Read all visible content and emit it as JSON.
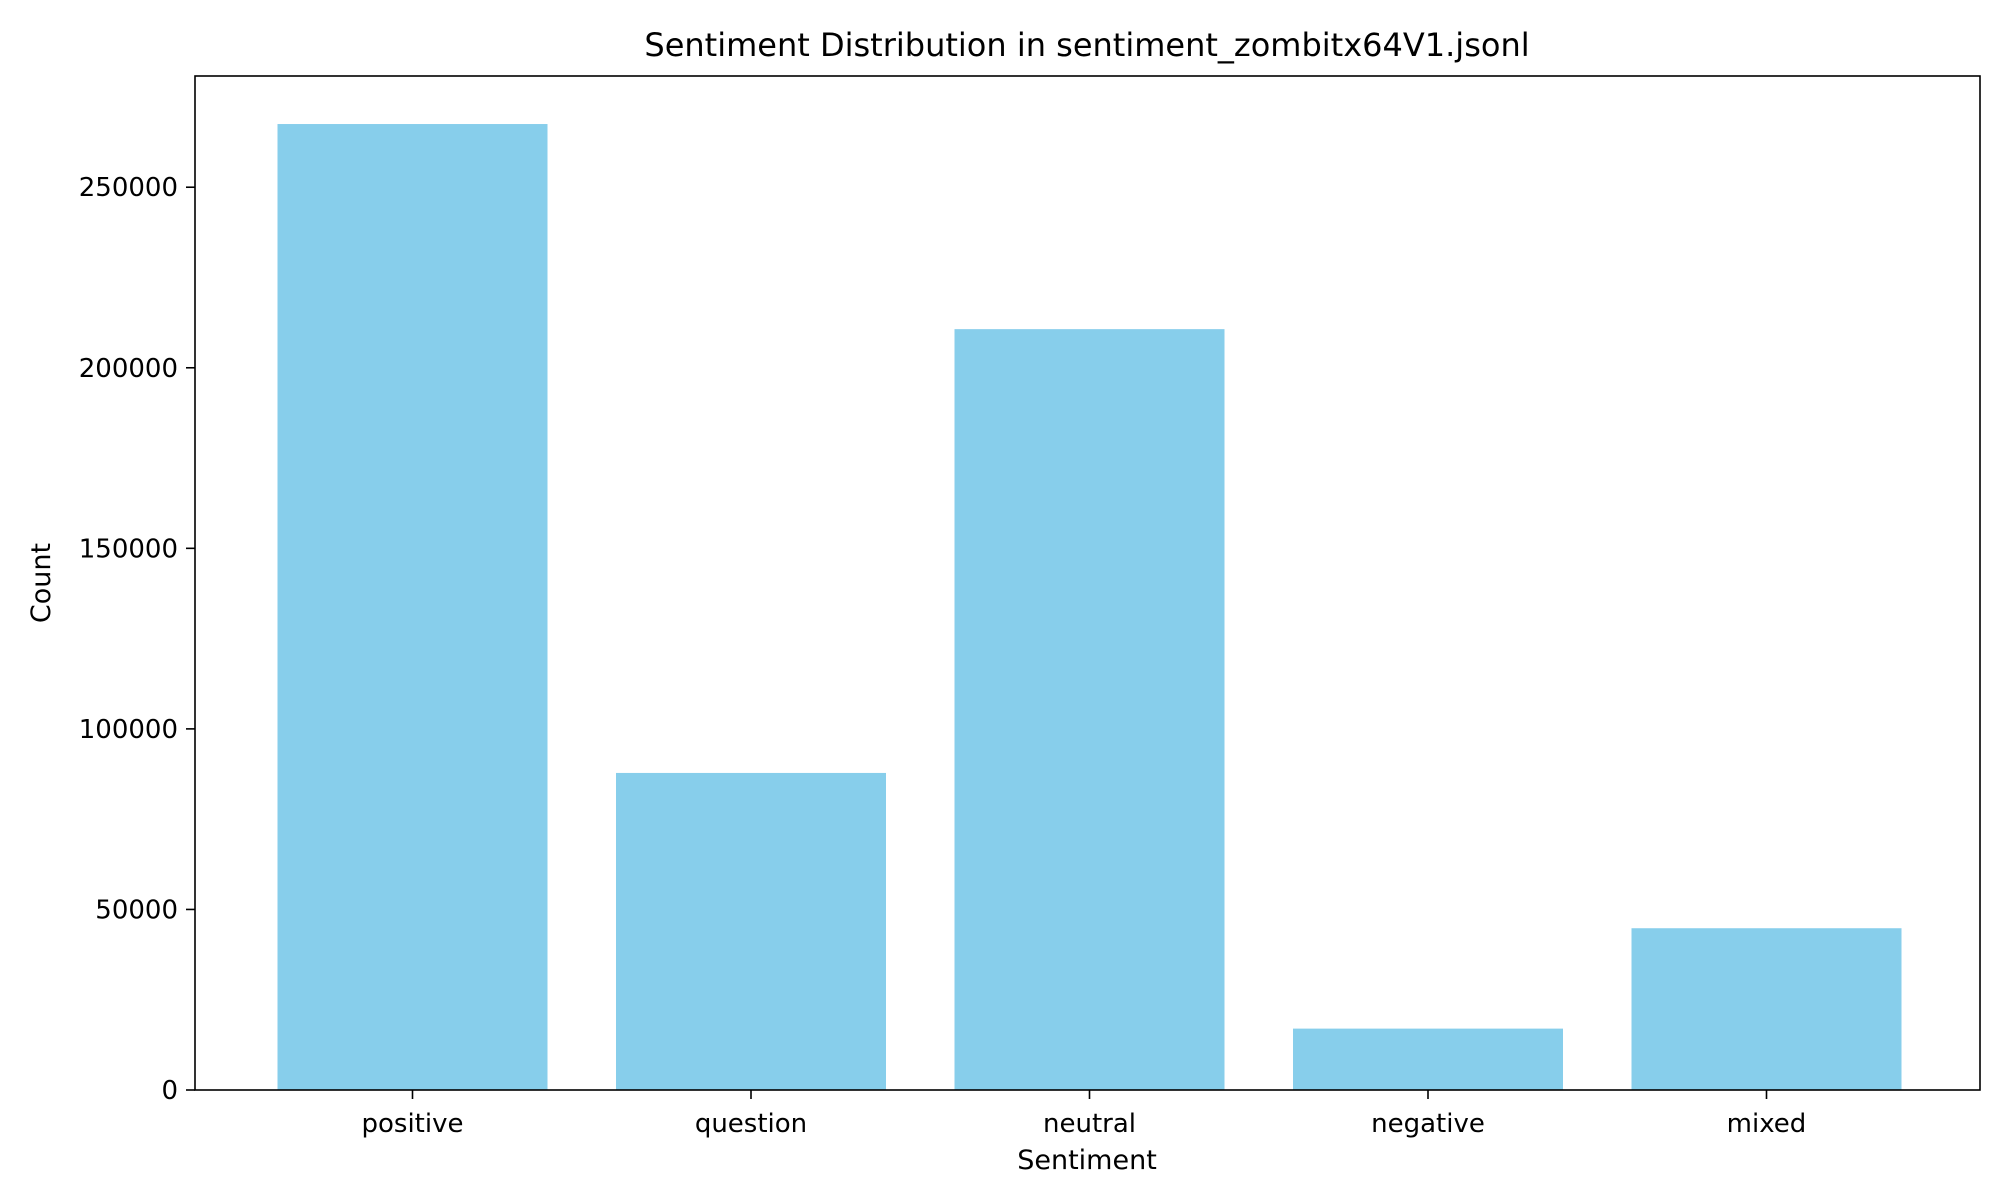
{
  "chart_data": {
    "type": "bar",
    "title": "Sentiment Distribution in sentiment_zombitx64V1.jsonl",
    "xlabel": "Sentiment",
    "ylabel": "Count",
    "categories": [
      "positive",
      "question",
      "neutral",
      "negative",
      "mixed"
    ],
    "values": [
      267500,
      87800,
      210700,
      17000,
      44800
    ],
    "ylim": [
      0,
      280800
    ],
    "yticks": [
      0,
      50000,
      100000,
      150000,
      200000,
      250000
    ],
    "ytick_labels": [
      "0",
      "50000",
      "100000",
      "150000",
      "200000",
      "250000"
    ],
    "grid": false,
    "legend": "none",
    "bar_color": "#87ceeb"
  }
}
